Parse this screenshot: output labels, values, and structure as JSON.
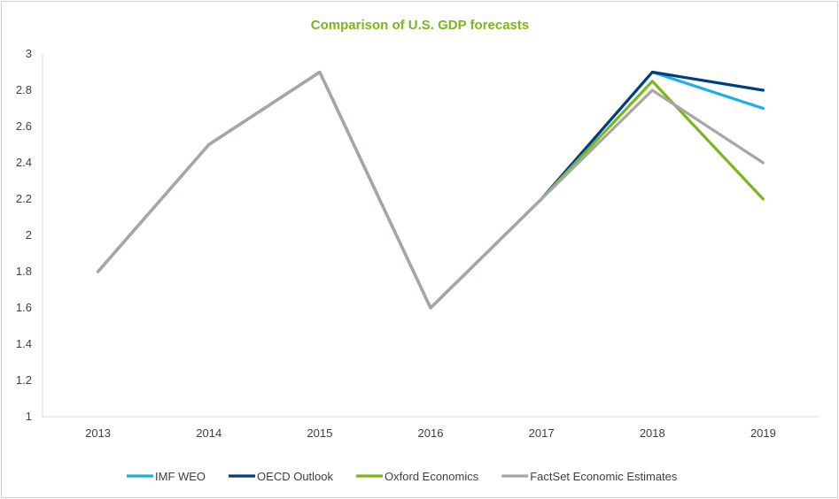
{
  "chart_data": {
    "type": "line",
    "title": "Comparison of U.S. GDP forecasts",
    "x": [
      "2013",
      "2014",
      "2015",
      "2016",
      "2017",
      "2018",
      "2019"
    ],
    "ylim": [
      1,
      3
    ],
    "yticks": [
      "1",
      "1.2",
      "1.4",
      "1.6",
      "1.8",
      "2",
      "2.2",
      "2.4",
      "2.6",
      "2.8",
      "3"
    ],
    "grid": false,
    "legend_position": "bottom",
    "series": [
      {
        "name": "IMF WEO",
        "color": "#1aafe6",
        "values": [
          1.8,
          2.5,
          2.9,
          1.6,
          2.2,
          2.9,
          2.7
        ]
      },
      {
        "name": "OECD Outlook",
        "color": "#003f7d",
        "values": [
          1.8,
          2.5,
          2.9,
          1.6,
          2.2,
          2.9,
          2.8
        ]
      },
      {
        "name": "Oxford Economics",
        "color": "#78b81a",
        "values": [
          1.8,
          2.5,
          2.9,
          1.6,
          2.2,
          2.85,
          2.2
        ]
      },
      {
        "name": "FactSet Economic Estimates",
        "color": "#a6a6a6",
        "values": [
          1.8,
          2.5,
          2.9,
          1.6,
          2.2,
          2.8,
          2.4
        ]
      }
    ],
    "title_color": "#78b81a"
  }
}
